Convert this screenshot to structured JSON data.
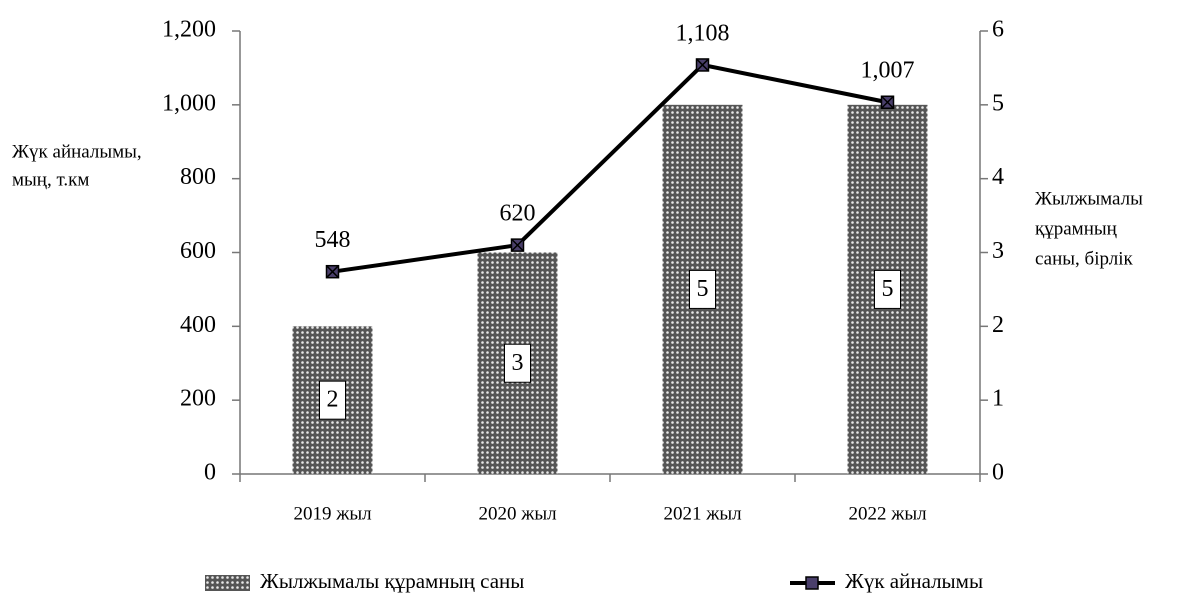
{
  "chart_data": {
    "type": "combo",
    "categories": [
      "2019 жыл",
      "2020 жыл",
      "2021 жыл",
      "2022 жыл"
    ],
    "series": [
      {
        "name": "Жылжымалы құрамның саны",
        "type": "bar",
        "axis": "y2",
        "color": "#555555",
        "values": [
          2,
          3,
          5,
          5
        ]
      },
      {
        "name": "Жүк айналымы",
        "type": "line",
        "color": "#000000",
        "marker_color": "#4a3f6b",
        "values": [
          548,
          620,
          1108,
          1007
        ],
        "value_labels": [
          "548",
          "620",
          "1,108",
          "1,007"
        ]
      }
    ],
    "ylabel": [
      "Жүк айналымы,",
      "мың, т.км"
    ],
    "y2label": [
      "Жылжымалы",
      "құрамның",
      "саны, бірлік"
    ],
    "ylim": [
      0,
      1200
    ],
    "yticks": [
      0,
      200,
      400,
      600,
      800,
      {
        "value": 1000,
        "label": "1,000"
      },
      {
        "value": 1200,
        "label": "1,200"
      }
    ],
    "y2lim": [
      0,
      6
    ],
    "y2ticks": [
      0,
      1,
      2,
      3,
      4,
      5,
      6
    ],
    "grid": false
  }
}
